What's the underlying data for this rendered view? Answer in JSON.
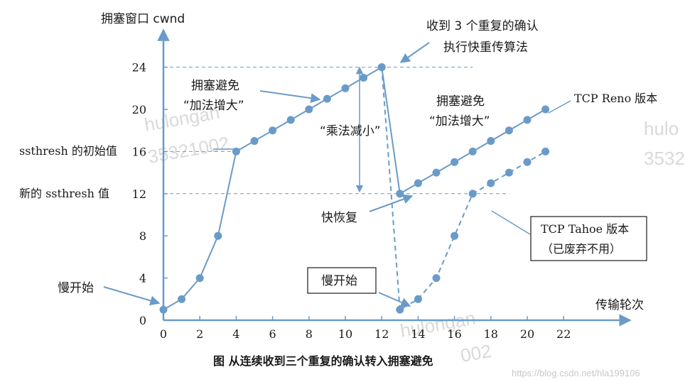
{
  "chart_data": {
    "type": "line",
    "title": "图 从连续收到三个重复的确认转入拥塞避免",
    "ylabel": "拥塞窗口 cwnd",
    "xlabel": "传输轮次",
    "xlim": [
      0,
      24
    ],
    "ylim": [
      0,
      28
    ],
    "x_ticks": [
      "0",
      "2",
      "4",
      "6",
      "8",
      "10",
      "12",
      "14",
      "16",
      "18",
      "20",
      "22"
    ],
    "y_ticks": [
      "0",
      "4",
      "8",
      "12",
      "16",
      "20",
      "24"
    ],
    "series": [
      {
        "name": "",
        "style": "solid",
        "color": "#6a9bc8",
        "points": [
          [
            0,
            1
          ],
          [
            1,
            2
          ],
          [
            2,
            4
          ],
          [
            3,
            8
          ],
          [
            4,
            16
          ],
          [
            5,
            17
          ],
          [
            6,
            18
          ],
          [
            7,
            19
          ],
          [
            8,
            20
          ],
          [
            9,
            21
          ],
          [
            10,
            22
          ],
          [
            11,
            23
          ],
          [
            12,
            24
          ],
          [
            13,
            12
          ],
          [
            14,
            13
          ],
          [
            15,
            14
          ],
          [
            16,
            15
          ],
          [
            17,
            16
          ],
          [
            18,
            17
          ],
          [
            19,
            18
          ],
          [
            20,
            19
          ],
          [
            21,
            20
          ]
        ]
      },
      {
        "name": "",
        "style": "dashed",
        "color": "#6a9bc8",
        "points": [
          [
            12,
            24
          ],
          [
            13,
            1
          ],
          [
            14,
            2
          ],
          [
            15,
            4
          ],
          [
            16,
            8
          ],
          [
            17,
            12
          ],
          [
            18,
            13
          ],
          [
            19,
            14
          ],
          [
            20,
            15
          ],
          [
            21,
            16
          ]
        ]
      }
    ],
    "reference_lines": [
      {
        "y": 24,
        "x_from": 0,
        "x_to": 17
      },
      {
        "y": 16,
        "x_from": 0,
        "x_to": 4
      },
      {
        "y": 12,
        "x_from": 0,
        "x_to": 19
      }
    ],
    "annotations": {
      "ssthresh_init": "ssthresh  的初始值",
      "ssthresh_new": "新的  ssthresh  值",
      "slow_start_1": "慢开始",
      "slow_start_2": "慢开始",
      "ca1_line1": "拥塞避免",
      "ca1_line2": "“加法增大”",
      "ca2_line1": "拥塞避免",
      "ca2_line2": "“加法增大”",
      "md": "“乘法减小”",
      "fr": "快恢复",
      "three_dup_line1": "收到  3  个重复的确认",
      "three_dup_line2": "执行快重传算法",
      "reno": "TCP Reno  版本",
      "tahoe_line1": "TCP Tahoe  版本",
      "tahoe_line2": "（已废弃不用）"
    }
  },
  "watermarks": [
    "hulongan",
    "35321002",
    "hulo",
    "3532",
    "hulongan",
    "002"
  ],
  "footer": "https://blog.csdn.net/hla199106"
}
